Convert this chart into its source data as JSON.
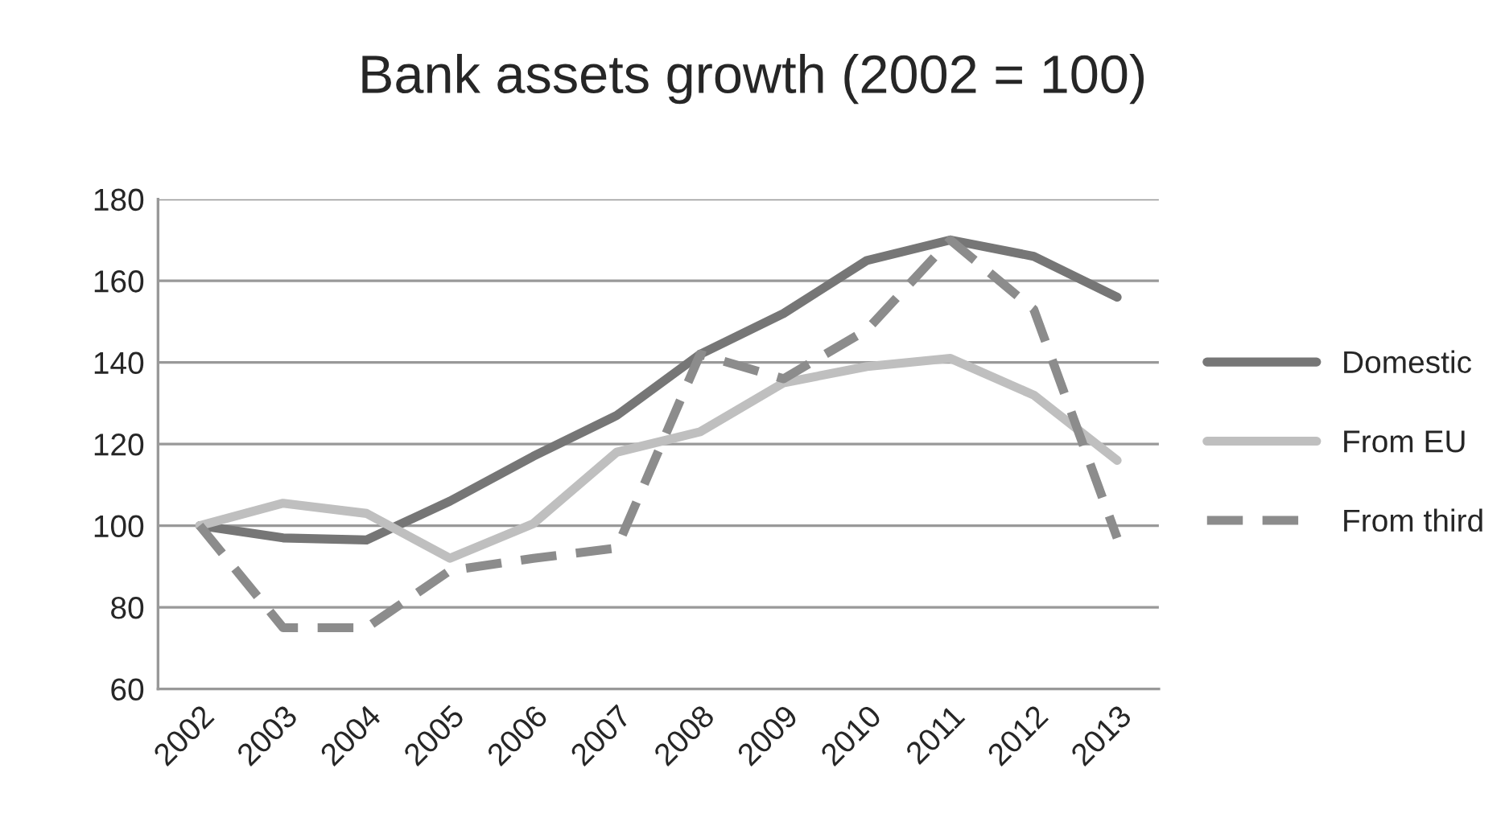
{
  "chart_data": {
    "type": "line",
    "title": "Bank assets growth (2002 = 100)",
    "categories": [
      "2002",
      "2003",
      "2004",
      "2005",
      "2006",
      "2007",
      "2008",
      "2009",
      "2010",
      "2011",
      "2012",
      "2013"
    ],
    "series": [
      {
        "name": "Domestic",
        "color": "#767676",
        "line_style": "solid",
        "values": [
          100,
          97,
          96.5,
          106,
          117,
          127,
          142,
          152,
          165,
          170,
          166,
          156
        ]
      },
      {
        "name": "From EU",
        "color": "#bfbfbf",
        "line_style": "solid",
        "values": [
          100,
          105.5,
          103,
          92,
          100.5,
          118,
          123,
          135,
          139,
          141,
          132,
          116
        ]
      },
      {
        "name": "From third",
        "color": "#8c8c8c",
        "line_style": "dashed",
        "values": [
          100,
          75,
          75,
          89,
          92,
          94.5,
          142,
          136,
          148,
          170,
          153,
          97
        ]
      }
    ],
    "ylim": [
      60,
      180
    ],
    "yticks": [
      60,
      80,
      100,
      120,
      140,
      160,
      180
    ],
    "grid": "y",
    "legend": "right",
    "marker": "none"
  }
}
